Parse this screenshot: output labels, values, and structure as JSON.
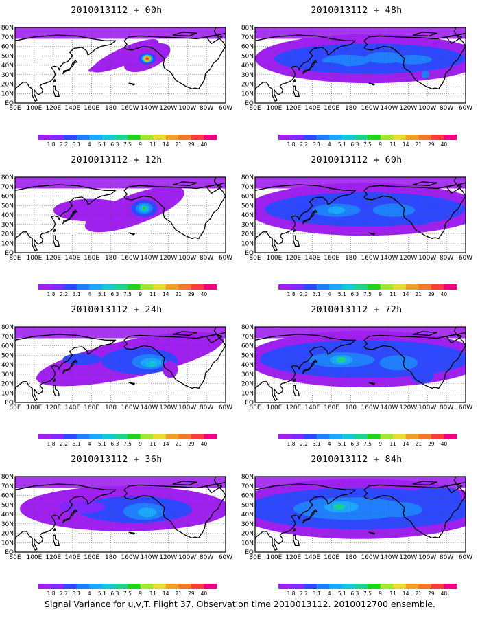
{
  "chart_data": {
    "type": "heatmap",
    "caption": "Signal Variance for u,v,T. Flight 37. Observation time 2010013112. 2010012700 ensemble.",
    "x_tick_labels": [
      "80E",
      "100E",
      "120E",
      "140E",
      "160E",
      "180",
      "160W",
      "140W",
      "120W",
      "100W",
      "80W",
      "60W"
    ],
    "y_tick_labels": [
      "EQ",
      "10N",
      "20N",
      "30N",
      "40N",
      "50N",
      "60N",
      "70N",
      "80N"
    ],
    "lon_range_deg_east": [
      80,
      300
    ],
    "lat_range_deg": [
      0,
      80
    ],
    "grid": "dotted",
    "colorbar_levels": [
      "1.8",
      "2.2",
      "3.1",
      "4",
      "5.1",
      "6.3",
      "7.5",
      "9",
      "11",
      "14",
      "21",
      "29",
      "40"
    ],
    "colorbar_colors": [
      "#a020f0",
      "#8228ff",
      "#2d48ff",
      "#1f7fff",
      "#1aa8ff",
      "#12c7d6",
      "#1bd28e",
      "#1ed21e",
      "#a0e632",
      "#e6dc32",
      "#f0a028",
      "#f07828",
      "#fa3c3c",
      "#f00082"
    ],
    "panels": [
      {
        "title": "2010013112 + 00h",
        "lead_hours": 0,
        "peak_level": "40",
        "blobs": [
          [
            218,
            48,
            26,
            12,
            0.6,
            1
          ],
          [
            195,
            50,
            38,
            9,
            0.6,
            1
          ],
          [
            175,
            42,
            20,
            4,
            0.6,
            1
          ],
          [
            218,
            48,
            14,
            8,
            0,
            0.9
          ],
          [
            218,
            47,
            9,
            6,
            0,
            2.5
          ],
          [
            218,
            47,
            6,
            4.5,
            0,
            5
          ],
          [
            218,
            47,
            4,
            3.5,
            0,
            9
          ],
          [
            218,
            47,
            2.8,
            2.6,
            0,
            14
          ],
          [
            218,
            47,
            1.7,
            1.7,
            0,
            25
          ],
          [
            218,
            47,
            0.9,
            0.9,
            0,
            42
          ]
        ]
      },
      {
        "title": "2010013112 + 48h",
        "lead_hours": 48,
        "peak_level": "5.1",
        "blobs": [
          [
            200,
            47,
            120,
            26,
            0,
            1
          ],
          [
            200,
            47,
            100,
            16,
            0,
            2.2
          ],
          [
            175,
            45,
            25,
            6,
            0,
            3.1
          ],
          [
            215,
            48,
            20,
            6,
            0,
            3.4
          ],
          [
            245,
            46,
            20,
            5,
            0,
            3.1
          ],
          [
            150,
            38,
            25,
            5,
            0,
            2.6
          ],
          [
            258,
            30,
            4,
            4,
            0,
            3.2
          ]
        ]
      },
      {
        "title": "2010013112 + 12h",
        "lead_hours": 12,
        "peak_level": "9",
        "blobs": [
          [
            205,
            46,
            55,
            16,
            0.5,
            1
          ],
          [
            160,
            45,
            40,
            12,
            0,
            1
          ],
          [
            215,
            47,
            14,
            9,
            0,
            2.2
          ],
          [
            215,
            47,
            9,
            6,
            0,
            3.1
          ],
          [
            215,
            47,
            6,
            4.5,
            0,
            4.5
          ],
          [
            215,
            47,
            3.5,
            2.8,
            0,
            6
          ],
          [
            215,
            47,
            2,
            1.6,
            0,
            8
          ]
        ]
      },
      {
        "title": "2010013112 + 60h",
        "lead_hours": 60,
        "peak_level": "5.1",
        "blobs": [
          [
            195,
            46,
            125,
            28,
            0,
            1
          ],
          [
            195,
            46,
            105,
            18,
            0,
            2.2
          ],
          [
            165,
            45,
            25,
            7,
            0,
            3.1
          ],
          [
            225,
            45,
            22,
            7,
            0,
            3.1
          ],
          [
            165,
            45,
            9,
            4,
            0,
            4.2
          ],
          [
            250,
            35,
            14,
            6,
            0,
            2.6
          ]
        ]
      },
      {
        "title": "2010013112 + 24h",
        "lead_hours": 24,
        "peak_level": "7.5",
        "blobs": [
          [
            200,
            46,
            100,
            20,
            0.3,
            1
          ],
          [
            210,
            44,
            40,
            14,
            0,
            2.2
          ],
          [
            150,
            46,
            20,
            6,
            0,
            2.2
          ],
          [
            220,
            43,
            18,
            8,
            0,
            3.1
          ],
          [
            222,
            42,
            11,
            5,
            0,
            4.4
          ],
          [
            223,
            41,
            5,
            3,
            0,
            5.6
          ],
          [
            242,
            35,
            8,
            9,
            0.3,
            1.5
          ]
        ]
      },
      {
        "title": "2010013112 + 72h",
        "lead_hours": 72,
        "peak_level": "7.5",
        "blobs": [
          [
            195,
            46,
            125,
            30,
            0,
            1
          ],
          [
            195,
            46,
            110,
            20,
            0,
            2.2
          ],
          [
            170,
            45,
            35,
            8,
            0,
            3.1
          ],
          [
            170,
            45,
            12,
            5,
            0,
            4.3
          ],
          [
            170,
            45,
            5,
            3,
            0,
            6.3
          ],
          [
            230,
            42,
            20,
            8,
            0,
            3.6
          ],
          [
            255,
            28,
            12,
            8,
            0,
            2.4
          ]
        ]
      },
      {
        "title": "2010013112 + 36h",
        "lead_hours": 36,
        "peak_level": "5.1",
        "blobs": [
          [
            195,
            46,
            110,
            24,
            0,
            1
          ],
          [
            205,
            45,
            60,
            14,
            0,
            2.2
          ],
          [
            215,
            43,
            22,
            9,
            0,
            3.1
          ],
          [
            218,
            42,
            10,
            5,
            0,
            4.1
          ],
          [
            150,
            48,
            24,
            7,
            0,
            2
          ]
        ]
      },
      {
        "title": "2010013112 + 84h",
        "lead_hours": 84,
        "peak_level": "7.5",
        "blobs": [
          [
            190,
            46,
            135,
            32,
            0,
            1
          ],
          [
            190,
            46,
            120,
            22,
            0,
            2.2
          ],
          [
            180,
            46,
            60,
            12,
            0,
            3.1
          ],
          [
            170,
            48,
            18,
            6,
            0,
            4.3
          ],
          [
            168,
            48,
            6,
            3,
            0,
            6.3
          ],
          [
            230,
            45,
            25,
            8,
            0,
            3.6
          ],
          [
            270,
            60,
            25,
            10,
            0,
            3
          ]
        ]
      }
    ]
  }
}
